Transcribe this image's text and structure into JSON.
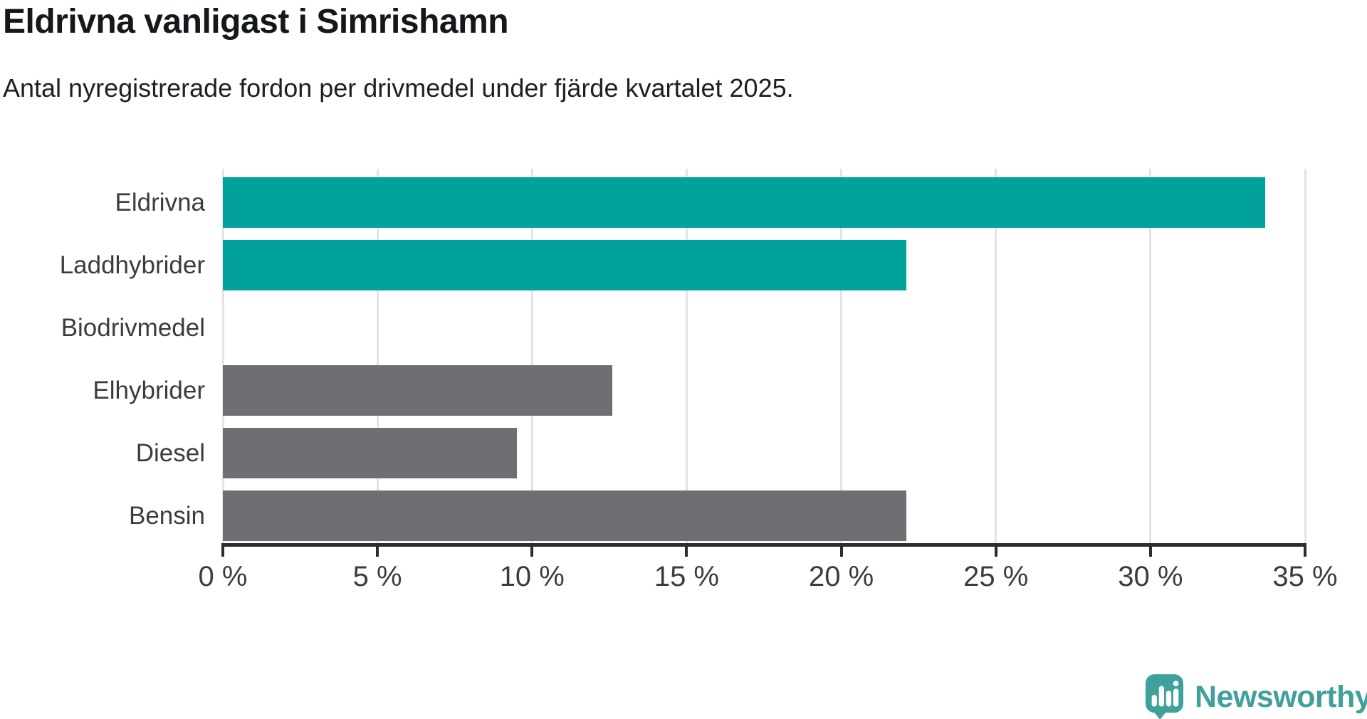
{
  "header": {
    "title": "Eldrivna vanligast i Simrishamn",
    "subtitle": "Antal nyregistrerade fordon per drivmedel under fjärde kvartalet 2025."
  },
  "chart_data": {
    "type": "bar",
    "orientation": "horizontal",
    "title": "Eldrivna vanligast i Simrishamn",
    "subtitle": "Antal nyregistrerade fordon per drivmedel under fjärde kvartalet 2025.",
    "categories": [
      "Eldrivna",
      "Laddhybrider",
      "Biodrivmedel",
      "Elhybrider",
      "Diesel",
      "Bensin"
    ],
    "values": [
      33.7,
      22.1,
      0,
      12.6,
      9.5,
      22.1
    ],
    "unit": "%",
    "xlabel": "",
    "ylabel": "",
    "xlim": [
      0,
      35
    ],
    "x_ticks": [
      0,
      5,
      10,
      15,
      20,
      25,
      30,
      35
    ],
    "x_tick_labels": [
      "0 %",
      "5 %",
      "10 %",
      "15 %",
      "20 %",
      "25 %",
      "30 %",
      "35 %"
    ],
    "grid": true,
    "legend": false,
    "bar_colors": [
      "#00a29b",
      "#00a29b",
      "#6e6e73",
      "#6e6e73",
      "#6e6e73",
      "#6e6e73"
    ],
    "highlight_color": "#00a29b",
    "default_color": "#6e6e73",
    "gridline_color": "#e4e4e4",
    "axis_color": "#2d2d2d"
  },
  "branding": {
    "logo_text": "Newsworthy",
    "logo_color": "#40a09b",
    "logo_icon": "speech-bubble-bar-chart-icon"
  }
}
